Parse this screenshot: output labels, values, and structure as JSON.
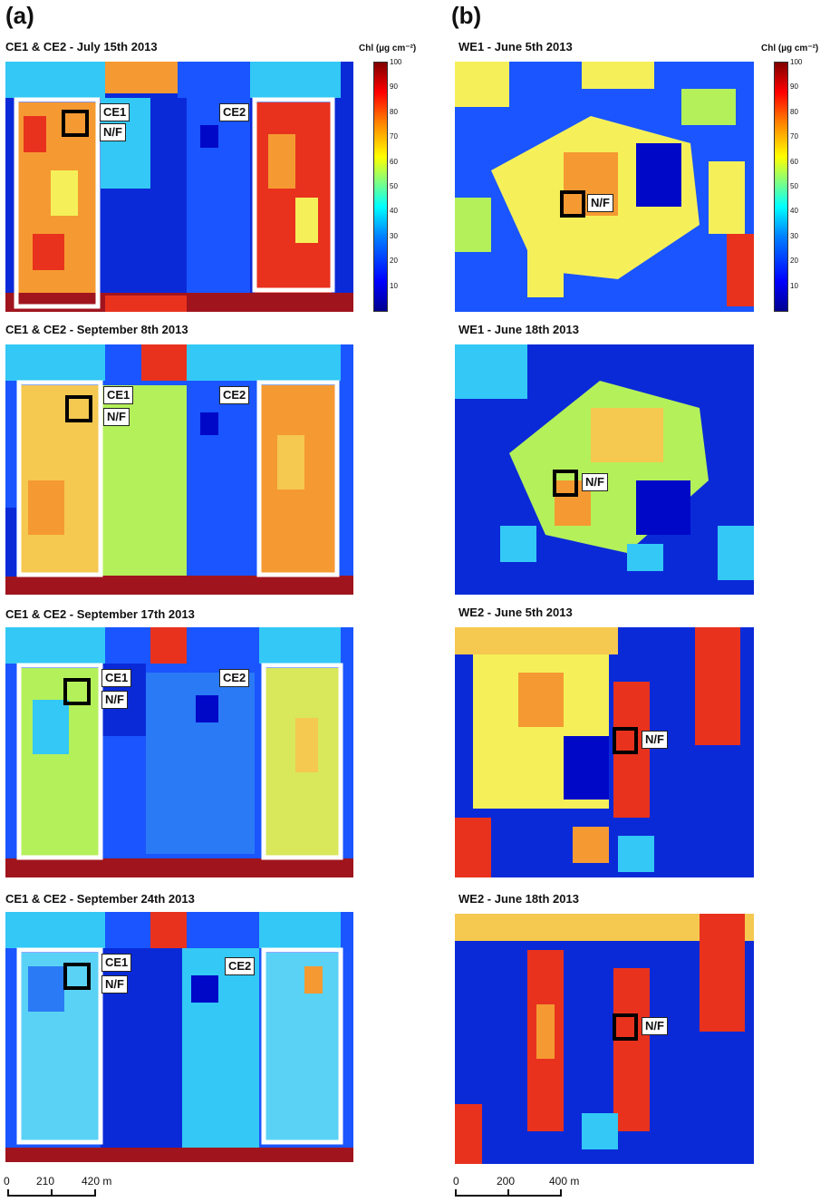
{
  "panels": {
    "a": {
      "letter": "(a)",
      "maps": [
        {
          "title": "CE1 & CE2 - July 15th 2013",
          "labels": [
            "CE1",
            "N/F",
            "CE2"
          ]
        },
        {
          "title": "CE1 & CE2 - September 8th 2013",
          "labels": [
            "CE1",
            "N/F",
            "CE2"
          ]
        },
        {
          "title": "CE1 & CE2 - September 17th 2013",
          "labels": [
            "CE1",
            "N/F",
            "CE2"
          ]
        },
        {
          "title": "CE1 & CE2 - September 24th 2013",
          "labels": [
            "CE1",
            "N/F",
            "CE2"
          ]
        }
      ],
      "colorbar": {
        "title": "Chl (µg cm⁻²)",
        "ticks": [
          "100",
          "90",
          "80",
          "70",
          "60",
          "50",
          "40",
          "30",
          "20",
          "10"
        ]
      },
      "scalebar": {
        "ticks": [
          "0",
          "210",
          "420 m"
        ]
      }
    },
    "b": {
      "letter": "(b)",
      "maps": [
        {
          "title": "WE1 - June 5th 2013",
          "labels": [
            "N/F"
          ]
        },
        {
          "title": "WE1 - June 18th 2013",
          "labels": [
            "N/F"
          ]
        },
        {
          "title": "WE2 - June 5th 2013",
          "labels": [
            "N/F"
          ]
        },
        {
          "title": "WE2 - June 18th 2013",
          "labels": [
            "N/F"
          ]
        }
      ],
      "colorbar": {
        "title": "Chl (µg cm⁻²)",
        "ticks": [
          "100",
          "90",
          "80",
          "70",
          "60",
          "50",
          "40",
          "30",
          "20",
          "10"
        ]
      },
      "scalebar": {
        "ticks": [
          "0",
          "200",
          "400 m"
        ]
      }
    }
  },
  "palette": {
    "dark_blue": "#0008c8",
    "blue": "#1a55ff",
    "cyan": "#33c8f5",
    "green_yellow": "#b4f05a",
    "yellow": "#f5f05a",
    "orange": "#f59a32",
    "red": "#e8321e",
    "dark_red": "#a0141e"
  }
}
